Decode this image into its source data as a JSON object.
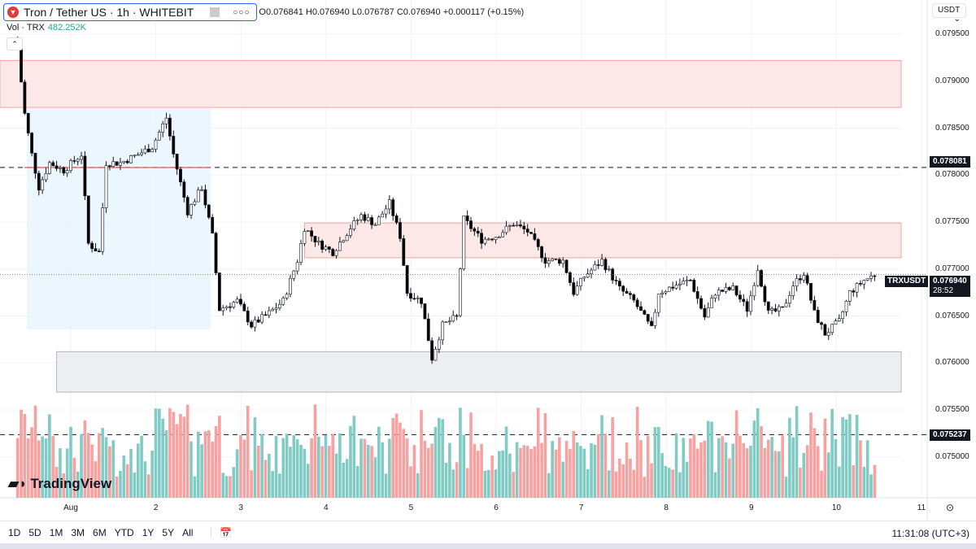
{
  "header": {
    "symbol_title": "Tron / Tether US · 1h · WHITEBIT",
    "ohlc": "O0.076841 H0.076940 L0.076787 C0.076940 +0.000117 (+0.15%)",
    "volume_label": "Vol · TRX",
    "volume_value": "482.252K",
    "currency": "USDT"
  },
  "brand": "TradingView",
  "price_axis": {
    "ticks": [
      "0.079500",
      "0.079000",
      "0.078500",
      "0.078000",
      "0.077500",
      "0.077000",
      "0.076500",
      "0.076000",
      "0.075500",
      "0.075000"
    ],
    "tick_values": [
      0.0795,
      0.079,
      0.0785,
      0.078,
      0.0775,
      0.077,
      0.0765,
      0.076,
      0.0755,
      0.075
    ]
  },
  "levels": {
    "upper_dashed": "0.078081",
    "lower_dashed": "0.075237",
    "current_symbol": "TRXUSDT",
    "current_price": "0.076940",
    "countdown": "28:52"
  },
  "time_axis": {
    "labels": [
      "Aug",
      "2",
      "3",
      "4",
      "5",
      "6",
      "7",
      "8",
      "9",
      "10",
      "11"
    ]
  },
  "ranges": [
    "1D",
    "5D",
    "1M",
    "3M",
    "6M",
    "YTD",
    "1Y",
    "5Y",
    "All"
  ],
  "clock": "11:31:08 (UTC+3)",
  "colors": {
    "up": "#26a69a",
    "down": "#000000",
    "vol_up": "#80cbc4",
    "vol_down": "#f7a1a1",
    "resistance_zone": "#fde8e8",
    "support_zone": "#eceef2",
    "profile": "#e3f2fd"
  },
  "chart_data": {
    "type": "candlestick",
    "interval": "1h",
    "ylim": [
      0.07465,
      0.0797
    ],
    "zones": [
      {
        "kind": "resistance",
        "from": 0.07872,
        "to": 0.07922,
        "start": "07-31 04:00"
      },
      {
        "kind": "resistance",
        "from": 0.07712,
        "to": 0.07749,
        "start": "08-03 18:00"
      },
      {
        "kind": "support",
        "from": 0.07569,
        "to": 0.07612,
        "start": "07-31 20:00"
      }
    ],
    "dashed_levels": [
      0.078081,
      0.075237
    ],
    "current_price": 0.07694,
    "close_path": [
      [
        "07-31 09:00",
        0.07934
      ],
      [
        "07-31 11:00",
        0.07865
      ],
      [
        "07-31 13:00",
        0.07822
      ],
      [
        "07-31 15:00",
        0.07787
      ],
      [
        "07-31 18:00",
        0.07813
      ],
      [
        "07-31 22:00",
        0.07805
      ],
      [
        "08-01 03:00",
        0.07822
      ],
      [
        "08-01 05:00",
        0.07727
      ],
      [
        "08-01 08:00",
        0.07718
      ],
      [
        "08-01 10:00",
        0.07813
      ],
      [
        "08-01 14:00",
        0.07813
      ],
      [
        "08-01 19:00",
        0.07822
      ],
      [
        "08-01 23:00",
        0.0783
      ],
      [
        "08-02 03:00",
        0.07861
      ],
      [
        "08-02 05:00",
        0.07822
      ],
      [
        "08-02 09:00",
        0.07761
      ],
      [
        "08-02 13:00",
        0.07787
      ],
      [
        "08-02 16:00",
        0.07735
      ],
      [
        "08-02 18:00",
        0.07657
      ],
      [
        "08-02 23:00",
        0.07666
      ],
      [
        "08-03 03:00",
        0.0764
      ],
      [
        "08-03 08:00",
        0.07653
      ],
      [
        "08-03 12:00",
        0.07666
      ],
      [
        "08-03 16:00",
        0.07709
      ],
      [
        "08-03 18:00",
        0.07744
      ],
      [
        "08-03 22:00",
        0.07727
      ],
      [
        "08-04 02:00",
        0.07718
      ],
      [
        "08-04 07:00",
        0.07744
      ],
      [
        "08-04 10:00",
        0.07757
      ],
      [
        "08-04 14:00",
        0.07748
      ],
      [
        "08-04 18:00",
        0.0777
      ],
      [
        "08-04 21:00",
        0.07735
      ],
      [
        "08-04 23:00",
        0.07675
      ],
      [
        "08-05 03:00",
        0.07666
      ],
      [
        "08-05 06:00",
        0.07605
      ],
      [
        "08-05 09:00",
        0.0764
      ],
      [
        "08-05 13:00",
        0.07649
      ],
      [
        "08-05 15:00",
        0.07753
      ],
      [
        "08-05 20:00",
        0.07731
      ],
      [
        "08-06 00:00",
        0.07735
      ],
      [
        "08-06 05:00",
        0.07748
      ],
      [
        "08-06 09:00",
        0.0774
      ],
      [
        "08-06 14:00",
        0.07709
      ],
      [
        "08-06 19:00",
        0.07709
      ],
      [
        "08-06 22:00",
        0.07675
      ],
      [
        "08-07 01:00",
        0.07692
      ],
      [
        "08-07 06:00",
        0.07709
      ],
      [
        "08-07 11:00",
        0.07679
      ],
      [
        "08-07 15:00",
        0.07666
      ],
      [
        "08-07 20:00",
        0.07636
      ],
      [
        "08-07 22:00",
        0.07675
      ],
      [
        "08-08 03:00",
        0.07683
      ],
      [
        "08-08 07:00",
        0.07688
      ],
      [
        "08-08 11:00",
        0.07649
      ],
      [
        "08-08 14:00",
        0.07675
      ],
      [
        "08-08 19:00",
        0.07679
      ],
      [
        "08-08 23:00",
        0.07657
      ],
      [
        "08-09 02:00",
        0.07701
      ],
      [
        "08-09 05:00",
        0.07653
      ],
      [
        "08-09 09:00",
        0.07657
      ],
      [
        "08-09 12:00",
        0.07683
      ],
      [
        "08-09 15:00",
        0.07696
      ],
      [
        "08-09 18:00",
        0.07653
      ],
      [
        "08-09 21:00",
        0.07631
      ],
      [
        "08-10 01:00",
        0.07644
      ],
      [
        "08-10 04:00",
        0.07675
      ],
      [
        "08-10 08:00",
        0.07688
      ],
      [
        "08-10 11:00",
        0.07694
      ]
    ]
  }
}
